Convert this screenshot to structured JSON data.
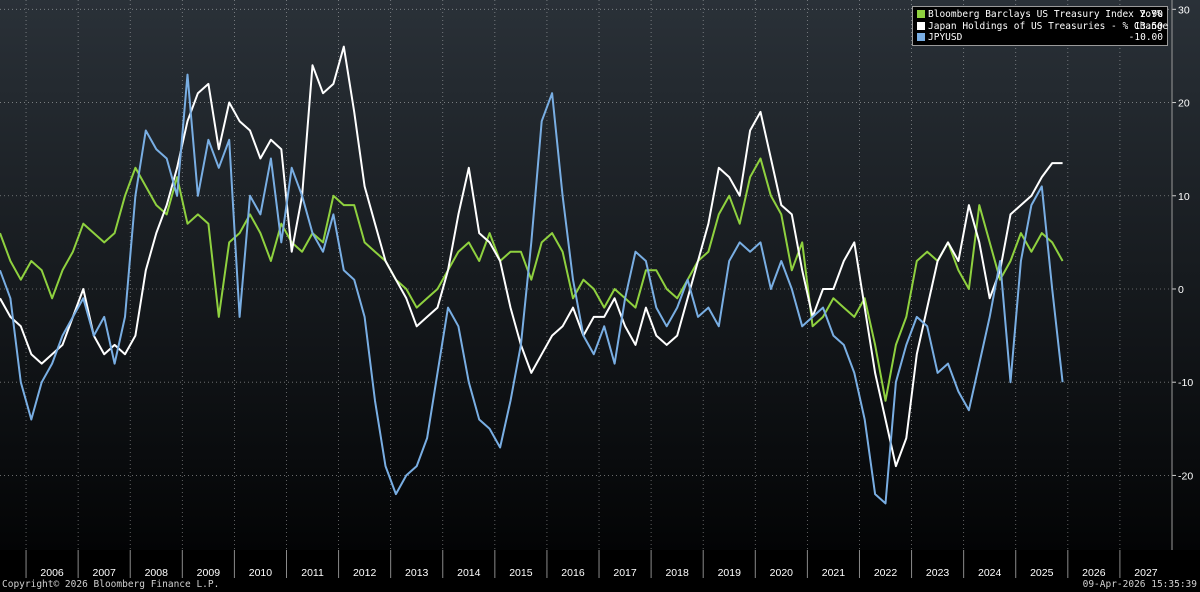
{
  "chart_data": {
    "type": "line",
    "x_tick_labels": [
      "2006",
      "2007",
      "2008",
      "2009",
      "2010",
      "2011",
      "2012",
      "2013",
      "2014",
      "2015",
      "2016",
      "2017",
      "2018",
      "2019",
      "2020",
      "2021",
      "2022",
      "2023",
      "2024",
      "2025",
      "2026",
      "2027"
    ],
    "y_tick_labels": [
      "30",
      "20",
      "10",
      "0",
      "-10",
      "-20"
    ],
    "yticks": [
      30,
      20,
      10,
      0,
      -10,
      -20
    ],
    "xlim": [
      2005.5,
      2028.0
    ],
    "ylim": [
      -28,
      31
    ],
    "grid": true,
    "legend_position": "top-right",
    "series": [
      {
        "name": "Bloomberg Barclays US Treasury Index YoY%",
        "last_value": "2.90",
        "color": "#8fd13f",
        "x": [
          2005.5,
          2005.7,
          2005.9,
          2006.1,
          2006.3,
          2006.5,
          2006.7,
          2006.9,
          2007.1,
          2007.3,
          2007.5,
          2007.7,
          2007.9,
          2008.1,
          2008.3,
          2008.5,
          2008.7,
          2008.9,
          2009.1,
          2009.3,
          2009.5,
          2009.7,
          2009.9,
          2010.1,
          2010.3,
          2010.5,
          2010.7,
          2010.9,
          2011.1,
          2011.3,
          2011.5,
          2011.7,
          2011.9,
          2012.1,
          2012.3,
          2012.5,
          2012.7,
          2012.9,
          2013.1,
          2013.3,
          2013.5,
          2013.7,
          2013.9,
          2014.1,
          2014.3,
          2014.5,
          2014.7,
          2014.9,
          2015.1,
          2015.3,
          2015.5,
          2015.7,
          2015.9,
          2016.1,
          2016.3,
          2016.5,
          2016.7,
          2016.9,
          2017.1,
          2017.3,
          2017.5,
          2017.7,
          2017.9,
          2018.1,
          2018.3,
          2018.5,
          2018.7,
          2018.9,
          2019.1,
          2019.3,
          2019.5,
          2019.7,
          2019.9,
          2020.1,
          2020.3,
          2020.5,
          2020.7,
          2020.9,
          2021.1,
          2021.3,
          2021.5,
          2021.7,
          2021.9,
          2022.1,
          2022.3,
          2022.5,
          2022.7,
          2022.9,
          2023.1,
          2023.3,
          2023.5,
          2023.7,
          2023.9,
          2024.1,
          2024.3,
          2024.5,
          2024.7,
          2024.9,
          2025.1,
          2025.3,
          2025.5,
          2025.7,
          2025.9
        ],
        "values": [
          6,
          3,
          1,
          3,
          2,
          -1,
          2,
          4,
          7,
          6,
          5,
          6,
          10,
          13,
          11,
          9,
          8,
          12,
          7,
          8,
          7,
          -3,
          5,
          6,
          8,
          6,
          3,
          7,
          5,
          4,
          6,
          5,
          10,
          9,
          9,
          5,
          4,
          3,
          1,
          0,
          -2,
          -1,
          0,
          2,
          4,
          5,
          3,
          6,
          3,
          4,
          4,
          1,
          5,
          6,
          4,
          -1,
          1,
          0,
          -2,
          0,
          -1,
          -2,
          2,
          2,
          0,
          -1,
          1,
          3,
          4,
          8,
          10,
          7,
          12,
          14,
          10,
          8,
          2,
          5,
          -4,
          -3,
          -1,
          -2,
          -3,
          -1,
          -6,
          -12,
          -6,
          -3,
          3,
          4,
          3,
          5,
          2,
          0,
          9,
          5,
          1,
          3,
          6,
          4,
          6,
          5,
          3
        ]
      },
      {
        "name": "Japan Holdings of US Treasuries - % Change",
        "last_value": "13.50",
        "color": "#ffffff",
        "x": [
          2005.5,
          2005.7,
          2005.9,
          2006.1,
          2006.3,
          2006.5,
          2006.7,
          2006.9,
          2007.1,
          2007.3,
          2007.5,
          2007.7,
          2007.9,
          2008.1,
          2008.3,
          2008.5,
          2008.7,
          2008.9,
          2009.1,
          2009.3,
          2009.5,
          2009.7,
          2009.9,
          2010.1,
          2010.3,
          2010.5,
          2010.7,
          2010.9,
          2011.1,
          2011.3,
          2011.5,
          2011.7,
          2011.9,
          2012.1,
          2012.3,
          2012.5,
          2012.7,
          2012.9,
          2013.1,
          2013.3,
          2013.5,
          2013.7,
          2013.9,
          2014.1,
          2014.3,
          2014.5,
          2014.7,
          2014.9,
          2015.1,
          2015.3,
          2015.5,
          2015.7,
          2015.9,
          2016.1,
          2016.3,
          2016.5,
          2016.7,
          2016.9,
          2017.1,
          2017.3,
          2017.5,
          2017.7,
          2017.9,
          2018.1,
          2018.3,
          2018.5,
          2018.7,
          2018.9,
          2019.1,
          2019.3,
          2019.5,
          2019.7,
          2019.9,
          2020.1,
          2020.3,
          2020.5,
          2020.7,
          2020.9,
          2021.1,
          2021.3,
          2021.5,
          2021.7,
          2021.9,
          2022.1,
          2022.3,
          2022.5,
          2022.7,
          2022.9,
          2023.1,
          2023.3,
          2023.5,
          2023.7,
          2023.9,
          2024.1,
          2024.3,
          2024.5,
          2024.7,
          2024.9,
          2025.1,
          2025.3,
          2025.5,
          2025.7,
          2025.9
        ],
        "values": [
          -1,
          -3,
          -4,
          -7,
          -8,
          -7,
          -6,
          -3,
          0,
          -5,
          -7,
          -6,
          -7,
          -5,
          2,
          6,
          9,
          13,
          18,
          21,
          22,
          15,
          20,
          18,
          17,
          14,
          16,
          15,
          4,
          10,
          24,
          21,
          22,
          26,
          19,
          11,
          7,
          3,
          1,
          -1,
          -4,
          -3,
          -2,
          2,
          8,
          13,
          6,
          5,
          3,
          -2,
          -6,
          -9,
          -7,
          -5,
          -4,
          -2,
          -5,
          -3,
          -3,
          -1,
          -4,
          -6,
          -2,
          -5,
          -6,
          -5,
          -1,
          3,
          7,
          13,
          12,
          10,
          17,
          19,
          14,
          9,
          8,
          2,
          -3,
          0,
          0,
          3,
          5,
          -2,
          -9,
          -14,
          -19,
          -16,
          -7,
          -2,
          3,
          5,
          3,
          9,
          5,
          -1,
          2,
          8,
          9,
          10,
          12,
          13.5,
          13.5
        ]
      },
      {
        "name": "JPYUSD",
        "last_value": "-10.00",
        "color": "#79aee3",
        "x": [
          2005.5,
          2005.7,
          2005.9,
          2006.1,
          2006.3,
          2006.5,
          2006.7,
          2006.9,
          2007.1,
          2007.3,
          2007.5,
          2007.7,
          2007.9,
          2008.1,
          2008.3,
          2008.5,
          2008.7,
          2008.9,
          2009.1,
          2009.3,
          2009.5,
          2009.7,
          2009.9,
          2010.1,
          2010.3,
          2010.5,
          2010.7,
          2010.9,
          2011.1,
          2011.3,
          2011.5,
          2011.7,
          2011.9,
          2012.1,
          2012.3,
          2012.5,
          2012.7,
          2012.9,
          2013.1,
          2013.3,
          2013.5,
          2013.7,
          2013.9,
          2014.1,
          2014.3,
          2014.5,
          2014.7,
          2014.9,
          2015.1,
          2015.3,
          2015.5,
          2015.7,
          2015.9,
          2016.1,
          2016.3,
          2016.5,
          2016.7,
          2016.9,
          2017.1,
          2017.3,
          2017.5,
          2017.7,
          2017.9,
          2018.1,
          2018.3,
          2018.5,
          2018.7,
          2018.9,
          2019.1,
          2019.3,
          2019.5,
          2019.7,
          2019.9,
          2020.1,
          2020.3,
          2020.5,
          2020.7,
          2020.9,
          2021.1,
          2021.3,
          2021.5,
          2021.7,
          2021.9,
          2022.1,
          2022.3,
          2022.5,
          2022.7,
          2022.9,
          2023.1,
          2023.3,
          2023.5,
          2023.7,
          2023.9,
          2024.1,
          2024.3,
          2024.5,
          2024.7,
          2024.9,
          2025.1,
          2025.3,
          2025.5,
          2025.7,
          2025.9
        ],
        "values": [
          2,
          -1,
          -10,
          -14,
          -10,
          -8,
          -5,
          -3,
          -1,
          -5,
          -3,
          -8,
          -3,
          10,
          17,
          15,
          14,
          10,
          23,
          10,
          16,
          13,
          16,
          -3,
          10,
          8,
          14,
          5,
          13,
          10,
          6,
          4,
          8,
          2,
          1,
          -3,
          -12,
          -19,
          -22,
          -20,
          -19,
          -16,
          -9,
          -2,
          -4,
          -10,
          -14,
          -15,
          -17,
          -12,
          -6,
          5,
          18,
          21,
          10,
          1,
          -5,
          -7,
          -4,
          -8,
          -1,
          4,
          3,
          -2,
          -4,
          -2,
          1,
          -3,
          -2,
          -4,
          3,
          5,
          4,
          5,
          0,
          3,
          0,
          -4,
          -3,
          -2,
          -5,
          -6,
          -9,
          -14,
          -22,
          -23,
          -10,
          -6,
          -3,
          -4,
          -9,
          -8,
          -11,
          -13,
          -8,
          -3,
          3,
          -10,
          3,
          9,
          11,
          0,
          -10
        ]
      }
    ]
  },
  "legend": [
    {
      "label": "Bloomberg Barclays US Treasury Index YoY%",
      "value": "2.90",
      "color": "#8fd13f"
    },
    {
      "label": "Japan Holdings of US Treasuries - % Change",
      "value": "13.50",
      "color": "#ffffff"
    },
    {
      "label": "JPYUSD",
      "value": "-10.00",
      "color": "#79aee3"
    }
  ],
  "footer": {
    "copyright": "Copyright© 2026 Bloomberg Finance L.P.",
    "timestamp": "09-Apr-2026 15:35:39"
  },
  "colors": {
    "background_top": "#2a3138",
    "background_bottom": "#030405",
    "grid": "#ffffff",
    "axis_text": "#ffffff"
  }
}
